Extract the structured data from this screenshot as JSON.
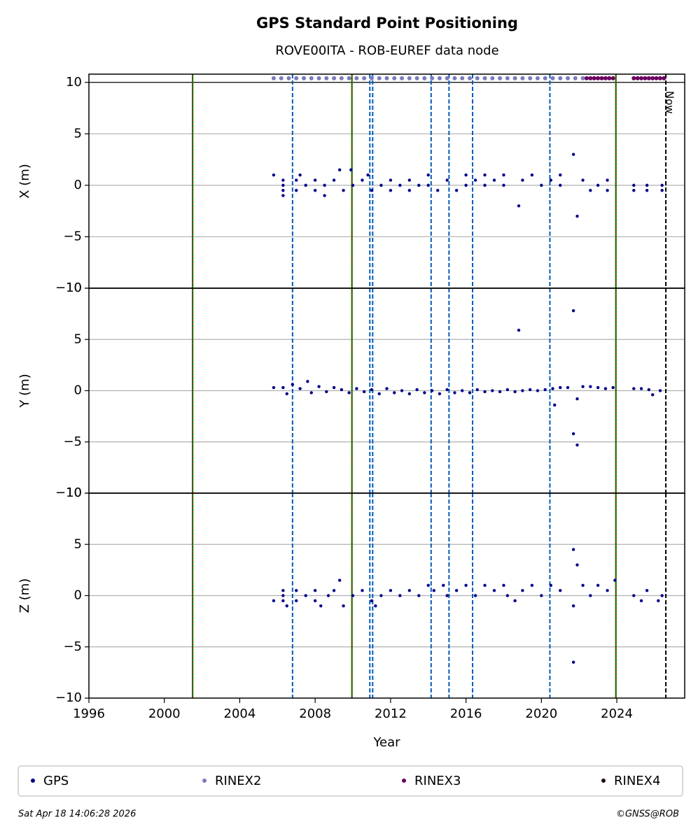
{
  "figure": {
    "title": "GPS Standard Point Positioning",
    "subtitle": "ROVE00ITA - ROB-EUREF data node",
    "footer_left": "Sat Apr 18 14:06:28 2026",
    "footer_right": "©GNSS@ROB",
    "now_label": "Now",
    "now": 2026.6,
    "site_changes": [
      2001.5,
      2009.95,
      2023.95
    ],
    "equipment_changes": [
      2006.8,
      2010.9,
      2011.05,
      2014.15,
      2015.1,
      2016.35,
      2020.45
    ]
  },
  "chart_data": [
    {
      "type": "scatter",
      "ylabel": "X (m)",
      "xlim": [
        1996,
        2027.6
      ],
      "ylim": [
        -10,
        10.8
      ],
      "yticks": [
        {
          "value": -10,
          "label": "−10"
        },
        {
          "value": -5,
          "label": "−5"
        },
        0,
        5,
        10
      ],
      "grid": true,
      "series": [
        {
          "name": "GPS",
          "color": "#00008b",
          "x": [
            2005.8,
            2006.3,
            2006.3,
            2006.3,
            2006.3,
            2007,
            2007,
            2007.2,
            2007.5,
            2008,
            2008,
            2008.5,
            2008.5,
            2009,
            2009.3,
            2009.5,
            2009.9,
            2010,
            2010.5,
            2010.8,
            2011,
            2011.5,
            2012,
            2012,
            2012.5,
            2013,
            2013,
            2013.5,
            2014,
            2014,
            2014.5,
            2015,
            2015.5,
            2016,
            2016,
            2016.5,
            2017,
            2017,
            2017.5,
            2018,
            2018,
            2018.8,
            2019,
            2019.5,
            2020,
            2020.5,
            2021,
            2021,
            2021.7,
            2021.9,
            2022.2,
            2022.6,
            2023,
            2023.5,
            2023.5,
            2024.9,
            2024.9,
            2025.6,
            2025.6,
            2026.4,
            2026.4
          ],
          "y": [
            1,
            0.5,
            0,
            -0.5,
            -1,
            0.5,
            -0.5,
            1,
            0,
            0.5,
            -0.5,
            0,
            -1,
            0.5,
            1.5,
            -0.5,
            1.5,
            0,
            0.5,
            1,
            -0.5,
            0,
            0.5,
            -0.5,
            0,
            0.5,
            -0.5,
            0,
            1,
            0,
            -0.5,
            0.5,
            -0.5,
            1,
            0,
            0.5,
            1,
            0,
            0.5,
            1,
            0,
            -2,
            0.5,
            1,
            0,
            0.5,
            1,
            0,
            3,
            -3,
            0.5,
            -0.5,
            0,
            0.5,
            -0.5,
            0,
            -0.5,
            0,
            -0.5,
            0,
            -0.5
          ]
        },
        {
          "name": "RINEX2",
          "color": "#7b7bbd",
          "x": [
            2005.8,
            2006.2,
            2006.6,
            2007.0,
            2007.4,
            2007.8,
            2008.2,
            2008.6,
            2009.0,
            2009.4,
            2009.8,
            2010.2,
            2010.6,
            2011.0,
            2011.4,
            2011.8,
            2012.2,
            2012.6,
            2013.0,
            2013.4,
            2013.8,
            2014.2,
            2014.6,
            2015.0,
            2015.4,
            2015.8,
            2016.2,
            2016.6,
            2017.0,
            2017.4,
            2017.8,
            2018.2,
            2018.6,
            2019.0,
            2019.4,
            2019.8,
            2020.2,
            2020.6,
            2021.0,
            2021.4,
            2021.8,
            2022.2
          ],
          "y": [
            10.4,
            10.4,
            10.4,
            10.4,
            10.4,
            10.4,
            10.4,
            10.4,
            10.4,
            10.4,
            10.4,
            10.4,
            10.4,
            10.4,
            10.4,
            10.4,
            10.4,
            10.4,
            10.4,
            10.4,
            10.4,
            10.4,
            10.4,
            10.4,
            10.4,
            10.4,
            10.4,
            10.4,
            10.4,
            10.4,
            10.4,
            10.4,
            10.4,
            10.4,
            10.4,
            10.4,
            10.4,
            10.4,
            10.4,
            10.4,
            10.4,
            10.4
          ]
        },
        {
          "name": "RINEX3",
          "color": "#6b0060",
          "x": [
            2022.4,
            2022.6,
            2022.8,
            2023.0,
            2023.2,
            2023.4,
            2023.6,
            2023.8,
            2024.9,
            2025.1,
            2025.3,
            2025.5,
            2025.7,
            2025.9,
            2026.1,
            2026.3,
            2026.5
          ],
          "y": [
            10.4,
            10.4,
            10.4,
            10.4,
            10.4,
            10.4,
            10.4,
            10.4,
            10.4,
            10.4,
            10.4,
            10.4,
            10.4,
            10.4,
            10.4,
            10.4,
            10.4
          ]
        },
        {
          "name": "RINEX4",
          "color": "#1e0a1c",
          "x": [],
          "y": []
        }
      ]
    },
    {
      "type": "scatter",
      "ylabel": "Y (m)",
      "xlim": [
        1996,
        2027.6
      ],
      "ylim": [
        -10,
        10
      ],
      "yticks": [
        {
          "value": -10,
          "label": "−10"
        },
        {
          "value": -5,
          "label": "−5"
        },
        0,
        5,
        10
      ],
      "grid": true,
      "series": [
        {
          "color": "#00008b",
          "x": [
            2005.8,
            2006.3,
            2006.5,
            2006.8,
            2007.2,
            2007.6,
            2007.8,
            2008.2,
            2008.6,
            2009,
            2009.4,
            2009.8,
            2010.2,
            2010.6,
            2011,
            2011.4,
            2011.8,
            2012.2,
            2012.6,
            2013,
            2013.4,
            2013.8,
            2014.2,
            2014.6,
            2015,
            2015.4,
            2015.8,
            2016.2,
            2016.6,
            2017,
            2017.4,
            2017.8,
            2018.2,
            2018.6,
            2018.8,
            2019,
            2019.4,
            2019.8,
            2020.2,
            2020.6,
            2020.7,
            2021,
            2021.4,
            2021.7,
            2021.7,
            2021.9,
            2021.9,
            2022.2,
            2022.6,
            2023,
            2023.4,
            2023.8,
            2024.9,
            2025.3,
            2025.7,
            2025.9,
            2026.3
          ],
          "y": [
            0.3,
            0.3,
            -0.3,
            0.6,
            0.2,
            0.9,
            -0.2,
            0.4,
            -0.1,
            0.3,
            0.1,
            -0.2,
            0.2,
            -0.1,
            0.1,
            -0.3,
            0.2,
            -0.2,
            0,
            -0.3,
            0.1,
            -0.2,
            0,
            -0.3,
            0.1,
            -0.2,
            0,
            -0.2,
            0.1,
            -0.1,
            0,
            -0.1,
            0.1,
            -0.1,
            5.9,
            0,
            0.1,
            0,
            0.1,
            0.2,
            -1.4,
            0.3,
            0.3,
            7.8,
            -4.2,
            -5.3,
            -0.8,
            0.4,
            0.4,
            0.3,
            0.2,
            0.3,
            0.2,
            0.2,
            0.1,
            -0.4,
            0
          ]
        }
      ]
    },
    {
      "type": "scatter",
      "ylabel": "Z (m)",
      "xlabel": "Year",
      "xlim": [
        1996,
        2027.6
      ],
      "xticks": [
        1996,
        2000,
        2004,
        2008,
        2012,
        2016,
        2020,
        2024
      ],
      "ylim": [
        -10,
        10
      ],
      "yticks": [
        {
          "value": -10,
          "label": "−10"
        },
        {
          "value": -5,
          "label": "−5"
        },
        0,
        5,
        10
      ],
      "grid": true,
      "series": [
        {
          "color": "#00008b",
          "x": [
            2005.8,
            2006.3,
            2006.3,
            2006.3,
            2006.5,
            2007,
            2007,
            2007.5,
            2008,
            2008,
            2008.3,
            2008.7,
            2009,
            2009.3,
            2009.5,
            2010,
            2010.5,
            2011,
            2011.2,
            2011.5,
            2012,
            2012.5,
            2013,
            2013.5,
            2014,
            2014.3,
            2014.8,
            2015,
            2015.5,
            2016,
            2016.5,
            2017,
            2017.5,
            2018,
            2018.2,
            2018.6,
            2019,
            2019.5,
            2020,
            2020.5,
            2021,
            2021.7,
            2021.7,
            2021.7,
            2021.9,
            2022.2,
            2022.6,
            2023,
            2023.5,
            2023.9,
            2024.9,
            2025.3,
            2025.6,
            2026.2,
            2026.4
          ],
          "y": [
            -0.5,
            0.5,
            0,
            -0.5,
            -1,
            0.5,
            -0.5,
            0,
            0.5,
            -0.5,
            -1,
            0,
            0.5,
            1.5,
            -1,
            0,
            0.5,
            -0.5,
            -1,
            0,
            0.5,
            0,
            0.5,
            0,
            1,
            0.5,
            1,
            0,
            0.5,
            1,
            0,
            1,
            0.5,
            1,
            0,
            -0.5,
            0.5,
            1,
            0,
            1,
            0.5,
            4.5,
            -6.5,
            -1,
            3,
            1,
            0,
            1,
            0.5,
            1.5,
            0,
            -0.5,
            0.5,
            -0.5,
            0
          ]
        }
      ]
    }
  ]
}
